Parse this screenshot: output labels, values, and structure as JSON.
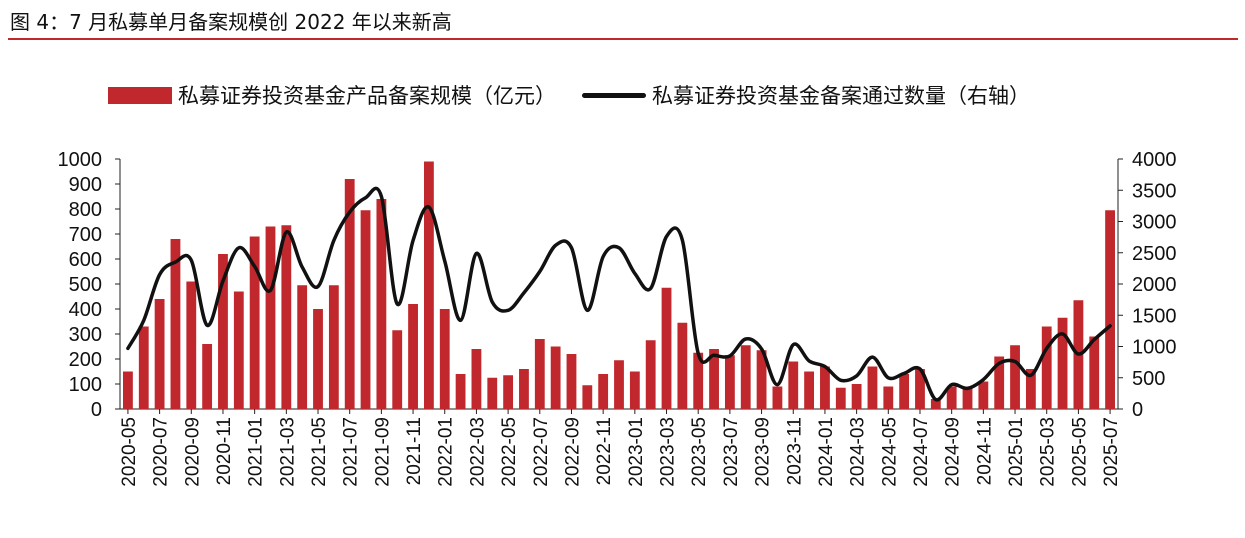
{
  "title": "图 4：7 月私募单月备案规模创 2022 年以来新高",
  "chart_data": {
    "type": "bar",
    "legend": {
      "bar_label": "私募证券投资基金产品备案规模（亿元）",
      "line_label": "私募证券投资基金备案通过数量（右轴）",
      "placement": "top"
    },
    "x_tick_labels": [
      "2020-05",
      "2020-07",
      "2020-09",
      "2020-11",
      "2021-01",
      "2021-03",
      "2021-05",
      "2021-07",
      "2021-09",
      "2021-11",
      "2022-01",
      "2022-03",
      "2022-05",
      "2022-07",
      "2022-09",
      "2022-11",
      "2023-01",
      "2023-03",
      "2023-05",
      "2023-07",
      "2023-09",
      "2023-11",
      "2024-01",
      "2024-03",
      "2024-05",
      "2024-07",
      "2024-09",
      "2024-11",
      "2025-01",
      "2025-03",
      "2025-05",
      "2025-07"
    ],
    "categories": [
      "2020-05",
      "2020-06",
      "2020-07",
      "2020-08",
      "2020-09",
      "2020-10",
      "2020-11",
      "2020-12",
      "2021-01",
      "2021-02",
      "2021-03",
      "2021-04",
      "2021-05",
      "2021-06",
      "2021-07",
      "2021-08",
      "2021-09",
      "2021-10",
      "2021-11",
      "2021-12",
      "2022-01",
      "2022-02",
      "2022-03",
      "2022-04",
      "2022-05",
      "2022-06",
      "2022-07",
      "2022-08",
      "2022-09",
      "2022-10",
      "2022-11",
      "2022-12",
      "2023-01",
      "2023-02",
      "2023-03",
      "2023-04",
      "2023-05",
      "2023-06",
      "2023-07",
      "2023-08",
      "2023-09",
      "2023-10",
      "2023-11",
      "2023-12",
      "2024-01",
      "2024-02",
      "2024-03",
      "2024-04",
      "2024-05",
      "2024-06",
      "2024-07",
      "2024-08",
      "2024-09",
      "2024-10",
      "2024-11",
      "2024-12",
      "2025-01",
      "2025-02",
      "2025-03",
      "2025-04",
      "2025-05",
      "2025-06",
      "2025-07"
    ],
    "series": [
      {
        "name": "私募证券投资基金产品备案规模（亿元）",
        "type": "bar",
        "axis": "left",
        "color": "#c0282d",
        "values": [
          150,
          330,
          440,
          680,
          510,
          260,
          620,
          470,
          690,
          730,
          735,
          495,
          400,
          495,
          920,
          795,
          840,
          315,
          420,
          990,
          400,
          140,
          240,
          125,
          135,
          160,
          280,
          250,
          220,
          95,
          140,
          195,
          150,
          275,
          485,
          345,
          225,
          240,
          215,
          255,
          235,
          90,
          190,
          150,
          170,
          85,
          100,
          170,
          90,
          140,
          160,
          40,
          90,
          90,
          110,
          210,
          255,
          160,
          330,
          365,
          435,
          290,
          795
        ]
      },
      {
        "name": "私募证券投资基金备案通过数量（右轴）",
        "type": "line",
        "axis": "right",
        "color": "#111111",
        "values": [
          970,
          1420,
          2150,
          2350,
          2380,
          1340,
          2050,
          2580,
          2280,
          1900,
          2830,
          2270,
          1960,
          2700,
          3150,
          3380,
          3400,
          1680,
          2700,
          3230,
          2370,
          1420,
          2490,
          1710,
          1580,
          1860,
          2200,
          2620,
          2580,
          1580,
          2440,
          2580,
          2170,
          1930,
          2760,
          2700,
          890,
          860,
          850,
          1120,
          960,
          390,
          1030,
          770,
          680,
          460,
          530,
          830,
          500,
          570,
          640,
          150,
          390,
          330,
          470,
          730,
          760,
          540,
          970,
          1200,
          880,
          1110,
          1330
        ]
      }
    ],
    "y_left": {
      "min": 0,
      "max": 1000,
      "step": 100,
      "ticks": [
        0,
        100,
        200,
        300,
        400,
        500,
        600,
        700,
        800,
        900,
        1000
      ]
    },
    "y_right": {
      "min": 0,
      "max": 4000,
      "step": 500,
      "ticks": [
        0,
        500,
        1000,
        1500,
        2000,
        2500,
        3000,
        3500,
        4000
      ]
    },
    "grid": false
  }
}
